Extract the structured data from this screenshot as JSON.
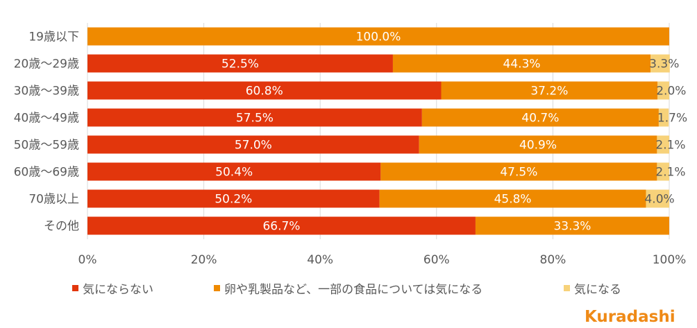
{
  "chart_data": {
    "type": "bar",
    "orientation": "horizontal",
    "stacked": "percent",
    "categories": [
      "19歳以下",
      "20歳～29歳",
      "30歳～39歳",
      "40歳～49歳",
      "50歳～59歳",
      "60歳～69歳",
      "70歳以上",
      "その他"
    ],
    "series": [
      {
        "name": "気にならない",
        "color": "#e2360c",
        "values": [
          0,
          52.5,
          60.8,
          57.5,
          57.0,
          50.4,
          50.2,
          66.7
        ],
        "labels": [
          "",
          "52.5%",
          "60.8%",
          "57.5%",
          "57.0%",
          "50.4%",
          "50.2%",
          "66.7%"
        ]
      },
      {
        "name": "卵や乳製品など、一部の食品については気になる",
        "color": "#ef8a00",
        "values": [
          100.0,
          44.3,
          37.2,
          40.7,
          40.9,
          47.5,
          45.8,
          33.3
        ],
        "labels": [
          "100.0%",
          "44.3%",
          "37.2%",
          "40.7%",
          "40.9%",
          "47.5%",
          "45.8%",
          "33.3%"
        ]
      },
      {
        "name": "気になる",
        "color": "#f7d27a",
        "values": [
          0,
          3.3,
          2.0,
          1.7,
          2.1,
          2.1,
          4.0,
          0
        ],
        "labels": [
          "",
          "3.3%",
          "2.0%",
          "1.7%",
          "2.1%",
          "2.1%",
          "4.0%",
          ""
        ]
      }
    ],
    "xlim": [
      0,
      100
    ],
    "xticks": [
      "0%",
      "20%",
      "40%",
      "60%",
      "80%",
      "100%"
    ],
    "grid": true,
    "legend_position": "bottom"
  },
  "legend": {
    "items": [
      "気にならない",
      "卵や乳製品など、一部の食品については気になる",
      "気になる"
    ]
  },
  "logo": {
    "text": "Kuradashi"
  }
}
